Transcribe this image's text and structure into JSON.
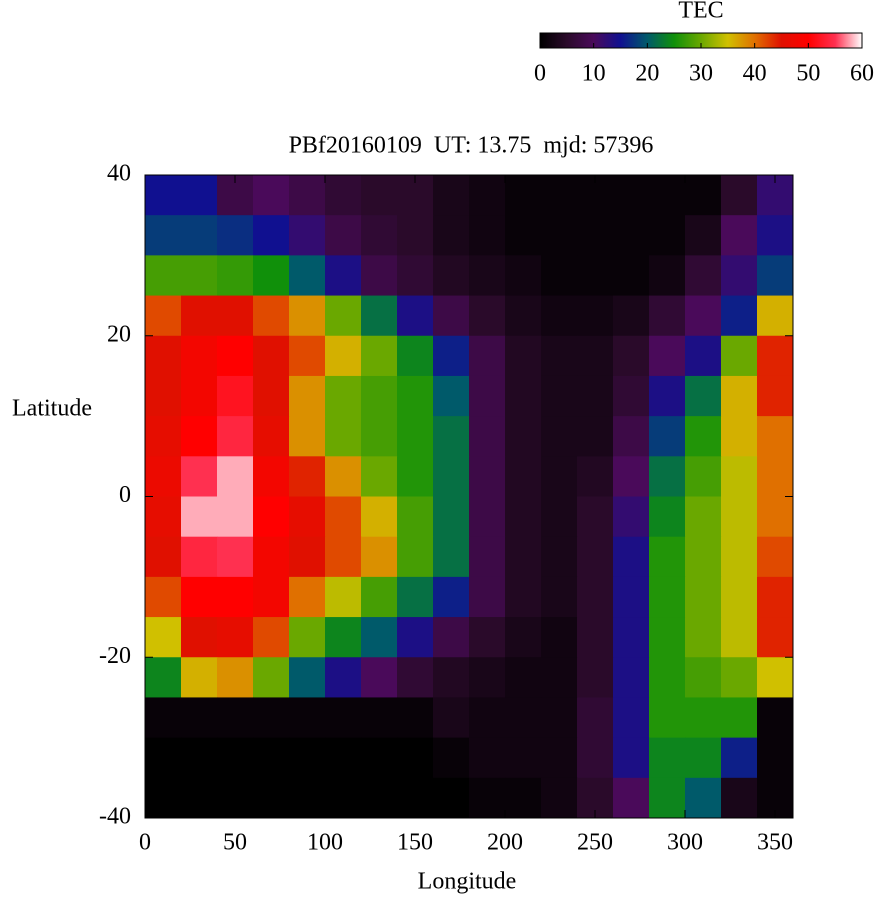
{
  "chart_data": {
    "type": "heatmap",
    "title": "PBf20160109  UT: 13.75  mjd: 57396",
    "xlabel": "Longitude",
    "ylabel": "Latitude",
    "colorbar_label": "TEC",
    "x": [
      10,
      30,
      50,
      70,
      90,
      110,
      130,
      150,
      170,
      190,
      210,
      230,
      250,
      270,
      290,
      310,
      330,
      350
    ],
    "y": [
      37.5,
      32.5,
      27.5,
      22.5,
      17.5,
      12.5,
      7.5,
      2.5,
      -2.5,
      -7.5,
      -12.5,
      -17.5,
      -22.5,
      -27.5,
      -32.5,
      -37.5
    ],
    "z": [
      [
        15,
        15,
        8,
        10,
        8,
        6,
        5,
        5,
        3,
        2,
        1,
        1,
        1,
        1,
        1,
        1,
        5,
        12
      ],
      [
        18,
        18,
        17,
        15,
        12,
        8,
        6,
        5,
        3,
        2,
        1,
        1,
        1,
        1,
        1,
        3,
        10,
        14
      ],
      [
        28,
        28,
        27,
        25,
        20,
        14,
        8,
        6,
        4,
        3,
        2,
        1,
        1,
        1,
        2,
        6,
        12,
        18
      ],
      [
        42,
        45,
        45,
        42,
        38,
        30,
        22,
        14,
        8,
        5,
        3,
        2,
        2,
        3,
        6,
        10,
        16,
        36
      ],
      [
        45,
        48,
        50,
        45,
        42,
        36,
        30,
        24,
        16,
        8,
        4,
        3,
        3,
        5,
        10,
        14,
        30,
        44
      ],
      [
        45,
        48,
        52,
        45,
        38,
        30,
        28,
        26,
        20,
        8,
        4,
        3,
        3,
        6,
        14,
        22,
        36,
        44
      ],
      [
        46,
        50,
        54,
        46,
        38,
        30,
        28,
        26,
        22,
        8,
        4,
        3,
        3,
        8,
        18,
        26,
        36,
        40
      ],
      [
        47,
        55,
        58,
        48,
        44,
        38,
        30,
        26,
        22,
        8,
        4,
        3,
        4,
        10,
        22,
        28,
        34,
        40
      ],
      [
        46,
        58,
        58,
        50,
        46,
        42,
        36,
        28,
        22,
        8,
        4,
        3,
        5,
        12,
        24,
        30,
        34,
        40
      ],
      [
        45,
        54,
        55,
        48,
        45,
        42,
        38,
        28,
        22,
        8,
        4,
        3,
        5,
        14,
        26,
        30,
        34,
        42
      ],
      [
        42,
        50,
        50,
        48,
        40,
        34,
        28,
        22,
        16,
        8,
        4,
        3,
        5,
        14,
        26,
        30,
        34,
        44
      ],
      [
        35,
        45,
        46,
        42,
        30,
        24,
        20,
        14,
        8,
        5,
        3,
        2,
        5,
        14,
        26,
        30,
        34,
        44
      ],
      [
        24,
        36,
        38,
        30,
        20,
        14,
        10,
        6,
        4,
        3,
        2,
        2,
        5,
        14,
        26,
        28,
        30,
        35
      ],
      [
        1,
        1,
        1,
        1,
        1,
        1,
        1,
        1,
        3,
        2,
        2,
        2,
        6,
        14,
        26,
        26,
        26,
        1
      ],
      [
        0,
        0,
        0,
        0,
        0,
        0,
        0,
        0,
        1,
        2,
        2,
        2,
        6,
        14,
        24,
        24,
        16,
        1
      ],
      [
        0,
        0,
        0,
        0,
        0,
        0,
        0,
        0,
        0,
        1,
        1,
        2,
        5,
        10,
        24,
        20,
        3,
        1
      ]
    ],
    "xlim": [
      0,
      360
    ],
    "xticks": [
      0,
      50,
      100,
      150,
      200,
      250,
      300,
      350
    ],
    "ylim": [
      -40,
      40
    ],
    "yticks": [
      -40,
      -20,
      0,
      20,
      40
    ],
    "zlim": [
      0,
      60
    ],
    "zticks": [
      0,
      10,
      20,
      30,
      40,
      50,
      60
    ],
    "colorscale": [
      "#000000",
      "#2a0a2a",
      "#4a0a5a",
      "#101090",
      "#005a6a",
      "#10900a",
      "#6aa800",
      "#d0c000",
      "#e07000",
      "#e01000",
      "#ff0000",
      "#ff3050",
      "#ffffff"
    ]
  }
}
